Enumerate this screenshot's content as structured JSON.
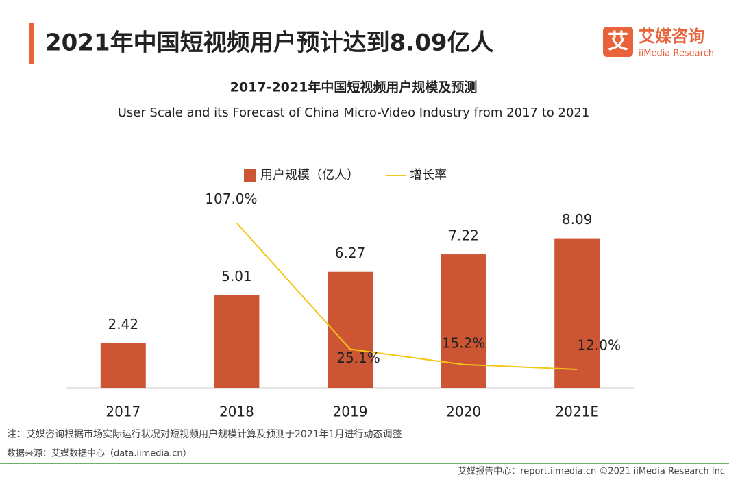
{
  "header": {
    "title": "2021年中国短视频用户预计达到8.09亿人",
    "logo_mark": "艾",
    "logo_name": "艾媒咨询",
    "logo_sub": "iiMedia Research"
  },
  "chart_data": {
    "type": "bar",
    "title": "2017-2021年中国短视频用户规模及预测",
    "subtitle": "User Scale and its Forecast of China Micro-Video Industry from 2017 to 2021",
    "categories": [
      "2017",
      "2018",
      "2019",
      "2020",
      "2021E"
    ],
    "series": [
      {
        "name": "用户规模（亿人）",
        "type": "bar",
        "color": "#cc5533",
        "values": [
          2.42,
          5.01,
          6.27,
          7.22,
          8.09
        ]
      },
      {
        "name": "增长率",
        "type": "line",
        "axis": "y2",
        "color": "#f5c518",
        "values": [
          null,
          107.0,
          25.1,
          15.2,
          12.0
        ],
        "value_labels": [
          null,
          "107.0%",
          "25.1%",
          "15.2%",
          "12.0%"
        ]
      }
    ],
    "ylim": [
      0,
      10
    ],
    "y2lim": [
      0,
      120
    ],
    "legend": "top"
  },
  "notes": {
    "note": "注：艾媒咨询根据市场实际运行状况对短视频用户规模计算及预测于2021年1月进行动态调整",
    "source": "数据来源：艾媒数据中心（data.iimedia.cn）",
    "footer": "艾媒报告中心：report.iimedia.cn  ©2021  iiMedia Research  Inc"
  }
}
